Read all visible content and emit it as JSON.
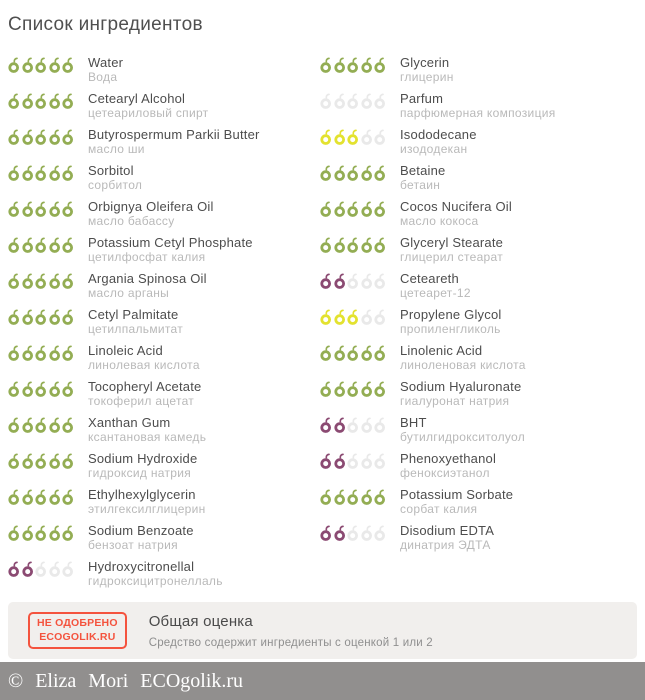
{
  "page": {
    "title": "Список ингредиентов"
  },
  "rating": {
    "max": 5,
    "colors": {
      "green": "#93ad53",
      "yellow": "#e3e22f",
      "purple": "#8b4a72",
      "empty": "#e9e9e9"
    }
  },
  "ingredients": {
    "left": [
      {
        "en": "Water",
        "ru": "Вода",
        "filled": 5,
        "color": "green"
      },
      {
        "en": "Cetearyl Alcohol",
        "ru": "цетеариловый спирт",
        "filled": 5,
        "color": "green"
      },
      {
        "en": "Butyrospermum Parkii Butter",
        "ru": "масло ши",
        "filled": 5,
        "color": "green"
      },
      {
        "en": "Sorbitol",
        "ru": "сорбитол",
        "filled": 5,
        "color": "green"
      },
      {
        "en": "Orbignya Oleifera Oil",
        "ru": "масло бабассу",
        "filled": 5,
        "color": "green"
      },
      {
        "en": "Potassium Cetyl Phosphate",
        "ru": "цетилфосфат калия",
        "filled": 5,
        "color": "green"
      },
      {
        "en": "Argania Spinosa Oil",
        "ru": "масло арганы",
        "filled": 5,
        "color": "green"
      },
      {
        "en": "Cetyl Palmitate",
        "ru": "цетилпальмитат",
        "filled": 5,
        "color": "green"
      },
      {
        "en": "Linoleic Acid",
        "ru": "линолевая кислота",
        "filled": 5,
        "color": "green"
      },
      {
        "en": "Tocopheryl Acetate",
        "ru": "токоферил ацетат",
        "filled": 5,
        "color": "green"
      },
      {
        "en": "Xanthan Gum",
        "ru": "ксантановая камедь",
        "filled": 5,
        "color": "green"
      },
      {
        "en": "Sodium Hydroxide",
        "ru": "гидроксид натрия",
        "filled": 5,
        "color": "green"
      },
      {
        "en": "Ethylhexylglycerin",
        "ru": "этилгексилглицерин",
        "filled": 5,
        "color": "green"
      },
      {
        "en": "Sodium Benzoate",
        "ru": "бензоат натрия",
        "filled": 5,
        "color": "green"
      },
      {
        "en": "Hydroxycitronellal",
        "ru": "гидроксицитронеллаль",
        "filled": 2,
        "color": "purple"
      }
    ],
    "right": [
      {
        "en": "Glycerin",
        "ru": "глицерин",
        "filled": 5,
        "color": "green"
      },
      {
        "en": "Parfum",
        "ru": "парфюмерная композиция",
        "filled": 0,
        "color": "empty"
      },
      {
        "en": "Isododecane",
        "ru": "изододекан",
        "filled": 3,
        "color": "yellow"
      },
      {
        "en": "Betaine",
        "ru": "бетаин",
        "filled": 5,
        "color": "green"
      },
      {
        "en": "Cocos Nucifera Oil",
        "ru": "масло кокоса",
        "filled": 5,
        "color": "green"
      },
      {
        "en": "Glyceryl Stearate",
        "ru": "глицерил стеарат",
        "filled": 5,
        "color": "green"
      },
      {
        "en": "Ceteareth",
        "ru": "цетеарет-12",
        "filled": 2,
        "color": "purple"
      },
      {
        "en": "Propylene Glycol",
        "ru": "пропиленгликоль",
        "filled": 3,
        "color": "yellow"
      },
      {
        "en": "Linolenic Acid",
        "ru": "линоленовая кислота",
        "filled": 5,
        "color": "green"
      },
      {
        "en": "Sodium Hyaluronate",
        "ru": "гиалуронат натрия",
        "filled": 5,
        "color": "green"
      },
      {
        "en": "BHT",
        "ru": "бутилгидрокситолуол",
        "filled": 2,
        "color": "purple"
      },
      {
        "en": "Phenoxyethanol",
        "ru": "феноксиэтанол",
        "filled": 2,
        "color": "purple"
      },
      {
        "en": "Potassium Sorbate",
        "ru": "сорбат калия",
        "filled": 5,
        "color": "green"
      },
      {
        "en": "Disodium EDTA",
        "ru": "динатрия ЭДТА",
        "filled": 2,
        "color": "purple"
      }
    ]
  },
  "summary": {
    "stamp_line1": "НЕ ОДОБРЕНО",
    "stamp_line2": "ECOGOLIK.RU",
    "title": "Общая оценка",
    "text": "Средство содержит ингредиенты с оценкой 1 или 2"
  },
  "footer": {
    "copyright": "© Eliza Mori ECOgolik.ru"
  }
}
